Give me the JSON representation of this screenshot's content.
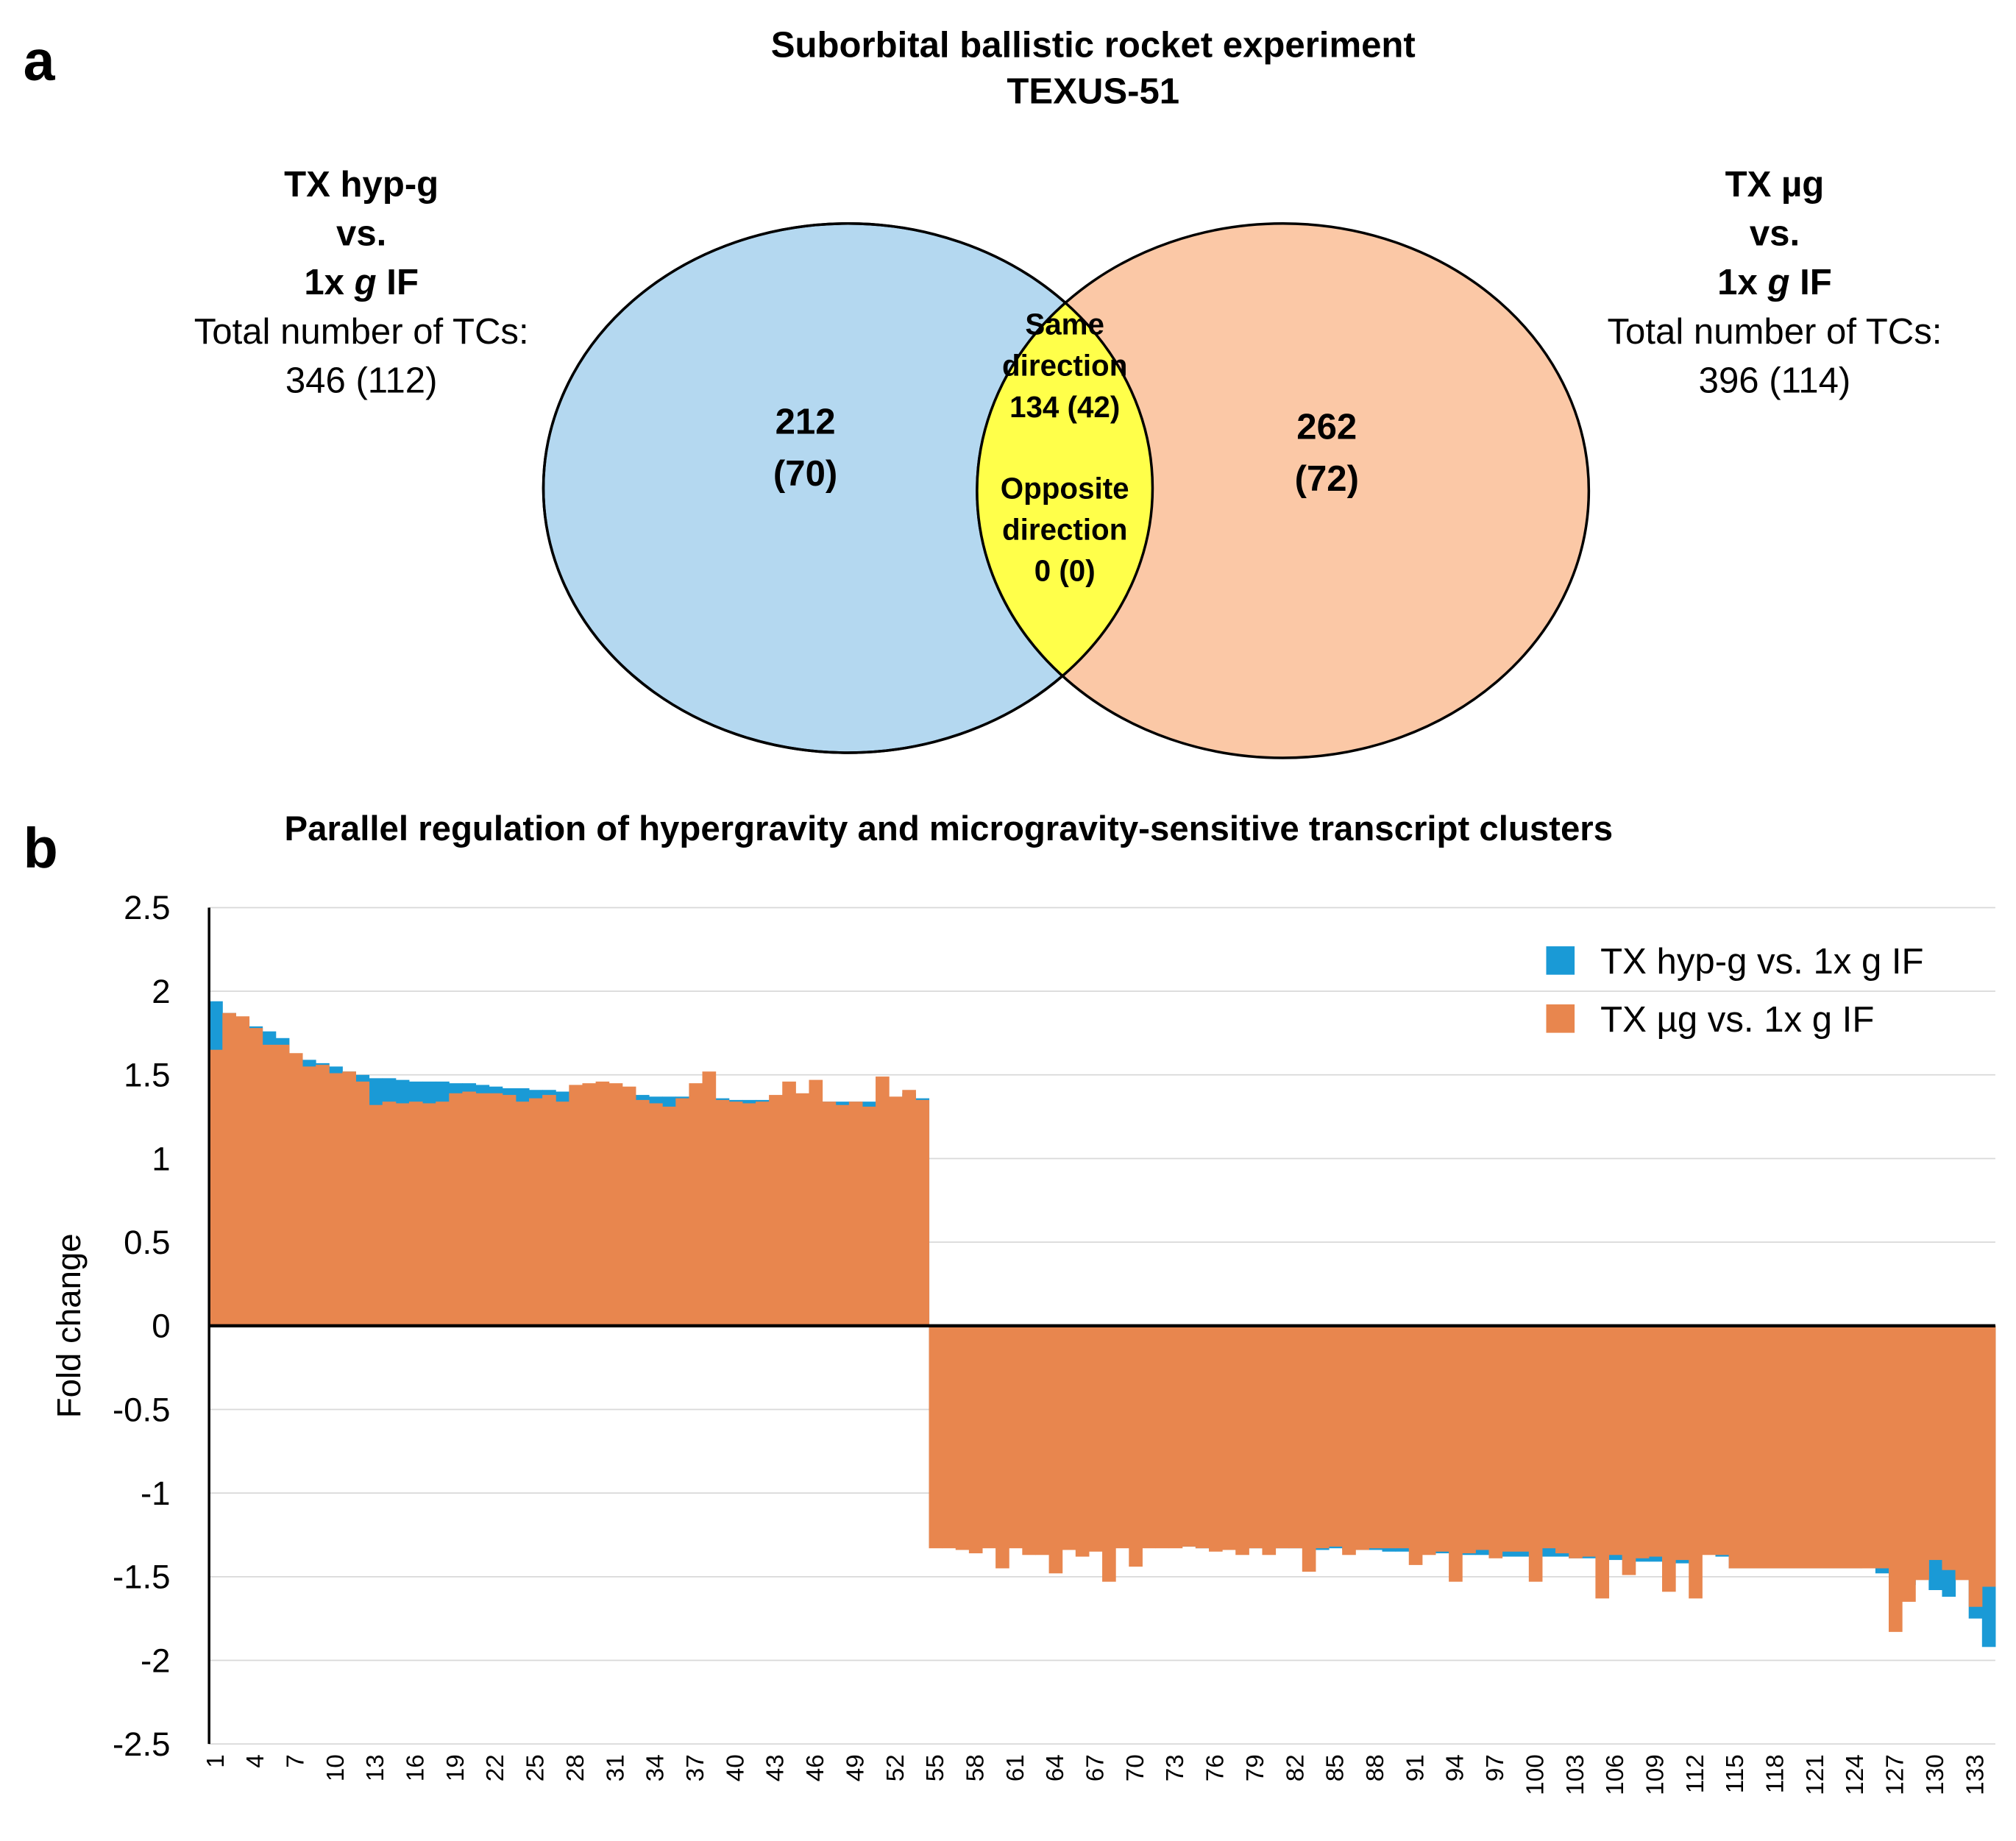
{
  "panel_a": {
    "label": "a",
    "title": [
      "Suborbital ballistic rocket experiment",
      "TEXUS-51"
    ],
    "left": {
      "heading": [
        "TX hyp-g",
        "vs."
      ],
      "condition": [
        "1x",
        "g",
        "IF"
      ],
      "total_label": "Total number of TCs:",
      "total": "346 (112)"
    },
    "right": {
      "heading": [
        "TX µg",
        "vs."
      ],
      "condition": [
        "1x",
        "g",
        "IF"
      ],
      "total_label": "Total number of TCs:",
      "total": "396 (114)"
    },
    "left_only": [
      "212",
      "(70)"
    ],
    "right_only": [
      "262",
      "(72)"
    ],
    "overlap": {
      "same": [
        "Same",
        "direction",
        "134 (42)"
      ],
      "opposite": [
        "Opposite",
        "direction",
        "0 (0)"
      ]
    }
  },
  "chart_data": {
    "type": "bar",
    "panel_label": "b",
    "title": "Parallel regulation of hypergravity and microgravity-sensitive transcript clusters",
    "ylabel": "Fold change",
    "ylim": [
      -2.5,
      2.5
    ],
    "yticks": [
      2.5,
      2,
      1.5,
      1,
      0.5,
      0,
      -0.5,
      -1,
      -1.5,
      -2,
      -2.5
    ],
    "grid": true,
    "legend": "top-right",
    "categories": [
      "1",
      null,
      null,
      "4",
      null,
      null,
      "7",
      null,
      null,
      "10",
      null,
      null,
      "13",
      null,
      null,
      "16",
      null,
      null,
      "19",
      null,
      null,
      "22",
      null,
      null,
      "25",
      null,
      null,
      "28",
      null,
      null,
      "31",
      null,
      null,
      "34",
      null,
      null,
      "37",
      null,
      null,
      "40",
      null,
      null,
      "43",
      null,
      null,
      "46",
      null,
      null,
      "49",
      null,
      null,
      "52",
      null,
      null,
      "55",
      null,
      null,
      "58",
      null,
      null,
      "61",
      null,
      null,
      "64",
      null,
      null,
      "67",
      null,
      null,
      "70",
      null,
      null,
      "73",
      null,
      null,
      "76",
      null,
      null,
      "79",
      null,
      null,
      "82",
      null,
      null,
      "85",
      null,
      null,
      "88",
      null,
      null,
      "91",
      null,
      null,
      "94",
      null,
      null,
      "97",
      null,
      null,
      "100",
      null,
      null,
      "103",
      null,
      null,
      "106",
      null,
      null,
      "109",
      null,
      null,
      "112",
      null,
      null,
      "115",
      null,
      null,
      "118",
      null,
      null,
      "121",
      null,
      null,
      "124",
      null,
      null,
      "127",
      null,
      null,
      "130",
      null,
      null,
      "133",
      null
    ],
    "series": [
      {
        "name": "TX hyp-g vs. 1x g IF",
        "color": "#1a9ad6",
        "values": [
          1.94,
          1.87,
          1.83,
          1.79,
          1.76,
          1.72,
          1.6,
          1.59,
          1.57,
          1.55,
          1.52,
          1.5,
          1.48,
          1.48,
          1.47,
          1.46,
          1.46,
          1.46,
          1.45,
          1.45,
          1.44,
          1.43,
          1.42,
          1.42,
          1.41,
          1.41,
          1.4,
          1.4,
          1.4,
          1.39,
          1.39,
          1.38,
          1.38,
          1.37,
          1.37,
          1.37,
          1.36,
          1.36,
          1.36,
          1.35,
          1.35,
          1.35,
          1.35,
          1.35,
          1.35,
          1.34,
          1.34,
          1.34,
          1.34,
          1.34,
          1.34,
          1.34,
          1.39,
          1.36,
          -1.32,
          -1.32,
          -1.32,
          -1.32,
          -1.32,
          -1.32,
          -1.32,
          -1.32,
          -1.32,
          -1.32,
          -1.32,
          -1.32,
          -1.32,
          -1.32,
          -1.32,
          -1.32,
          -1.32,
          -1.32,
          -1.32,
          -1.32,
          -1.33,
          -1.33,
          -1.33,
          -1.33,
          -1.33,
          -1.33,
          -1.33,
          -1.33,
          -1.33,
          -1.34,
          -1.33,
          -1.34,
          -1.34,
          -1.34,
          -1.35,
          -1.35,
          -1.35,
          -1.35,
          -1.36,
          -1.36,
          -1.37,
          -1.37,
          -1.37,
          -1.38,
          -1.38,
          -1.35,
          -1.38,
          -1.38,
          -1.39,
          -1.39,
          -1.33,
          -1.4,
          -1.4,
          -1.41,
          -1.41,
          -1.42,
          -1.42,
          -1.34,
          -1.33,
          -1.38,
          -1.45,
          -1.45,
          -1.45,
          -1.45,
          -1.45,
          -1.45,
          -1.45,
          -1.45,
          -1.45,
          -1.45,
          -1.43,
          -1.48,
          -1.38,
          -1.55,
          -1.36,
          -1.58,
          -1.62,
          -1.37,
          -1.75,
          -1.92
        ]
      },
      {
        "name": "TX µg vs. 1x g IF",
        "color": "#e8864e",
        "values": [
          1.65,
          1.87,
          1.85,
          1.78,
          1.68,
          1.68,
          1.63,
          1.55,
          1.56,
          1.51,
          1.52,
          1.46,
          1.32,
          1.34,
          1.33,
          1.34,
          1.33,
          1.34,
          1.39,
          1.4,
          1.39,
          1.39,
          1.38,
          1.34,
          1.36,
          1.38,
          1.34,
          1.44,
          1.45,
          1.46,
          1.45,
          1.43,
          1.35,
          1.33,
          1.31,
          1.36,
          1.45,
          1.52,
          1.35,
          1.34,
          1.33,
          1.34,
          1.38,
          1.46,
          1.39,
          1.47,
          1.34,
          1.32,
          1.34,
          1.31,
          1.49,
          1.37,
          1.41,
          1.35,
          -1.33,
          -1.33,
          -1.34,
          -1.36,
          -1.33,
          -1.45,
          -1.33,
          -1.37,
          -1.37,
          -1.48,
          -1.34,
          -1.38,
          -1.35,
          -1.53,
          -1.33,
          -1.44,
          -1.33,
          -1.33,
          -1.33,
          -1.32,
          -1.33,
          -1.35,
          -1.34,
          -1.37,
          -1.33,
          -1.37,
          -1.33,
          -1.33,
          -1.47,
          -1.33,
          -1.32,
          -1.37,
          -1.34,
          -1.33,
          -1.33,
          -1.33,
          -1.43,
          -1.37,
          -1.35,
          -1.53,
          -1.36,
          -1.34,
          -1.39,
          -1.35,
          -1.35,
          -1.53,
          -1.33,
          -1.36,
          -1.39,
          -1.38,
          -1.63,
          -1.37,
          -1.49,
          -1.39,
          -1.38,
          -1.59,
          -1.4,
          -1.63,
          -1.37,
          -1.37,
          -1.45,
          -1.45,
          -1.45,
          -1.45,
          -1.45,
          -1.45,
          -1.45,
          -1.45,
          -1.45,
          -1.45,
          -1.45,
          -1.45,
          -1.83,
          -1.65,
          -1.52,
          -1.4,
          -1.46,
          -1.52,
          -1.68,
          -1.56
        ]
      }
    ]
  }
}
